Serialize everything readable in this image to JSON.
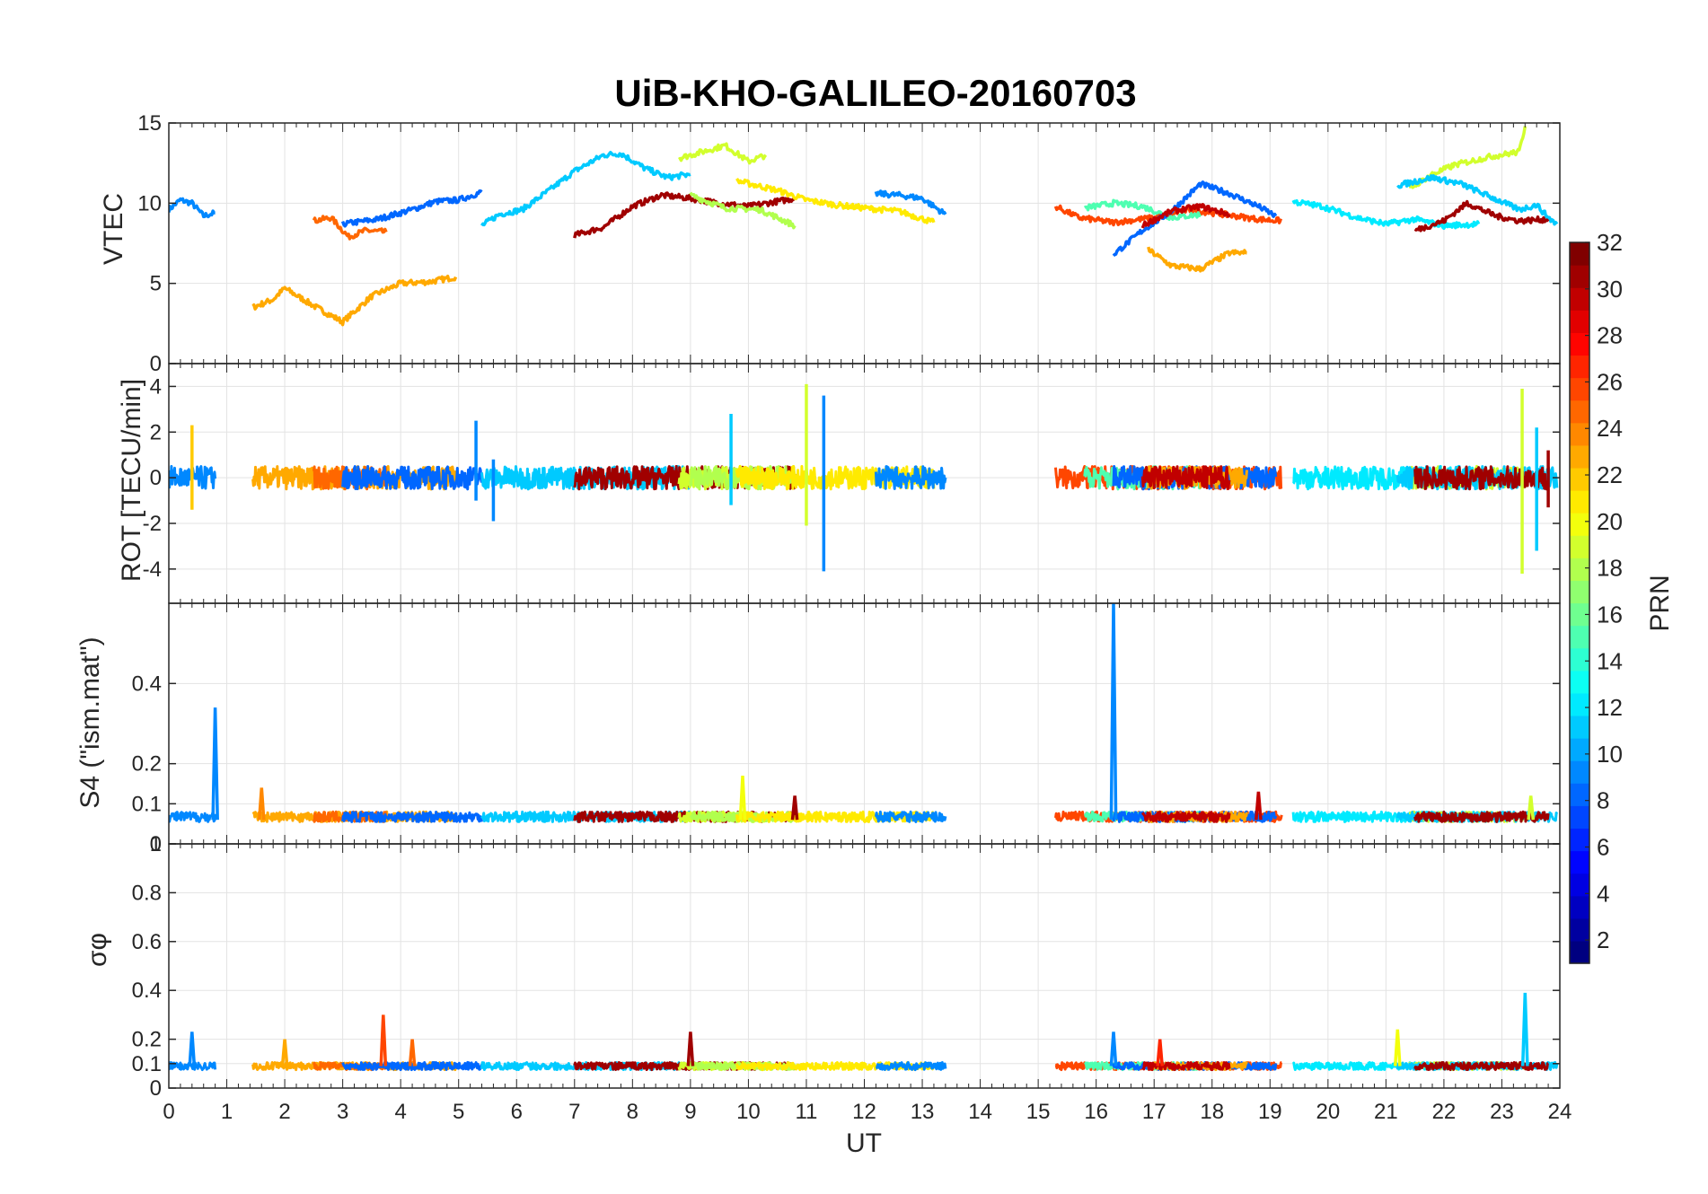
{
  "title": "UiB-KHO-GALILEO-20160703",
  "colors": {
    "grid": "#e3e3e3",
    "axis": "#262626",
    "colormap": "jet"
  },
  "chart_data": [
    {
      "type": "line",
      "panel": "vtec",
      "ylabel": "VTEC",
      "xlim": [
        0,
        24
      ],
      "ylim": [
        0,
        15
      ],
      "yticks": [
        "0",
        "5",
        "10",
        "15"
      ],
      "grid": true,
      "series": [
        {
          "prn": 9,
          "x": [
            0.0,
            0.2,
            0.4,
            0.6,
            0.8
          ],
          "y": [
            9.6,
            10.2,
            10.0,
            9.2,
            9.4
          ]
        },
        {
          "prn": 23,
          "x": [
            1.45,
            1.8,
            2.0,
            2.5,
            3.0,
            3.5,
            4.0,
            4.5,
            4.95
          ],
          "y": [
            3.5,
            4.0,
            4.7,
            3.6,
            2.6,
            4.2,
            5.0,
            5.1,
            5.4
          ]
        },
        {
          "prn": 25,
          "x": [
            2.5,
            2.8,
            3.1,
            3.4,
            3.75
          ],
          "y": [
            8.9,
            9.1,
            7.9,
            8.3,
            8.2
          ]
        },
        {
          "prn": 8,
          "x": [
            3.0,
            3.6,
            4.2,
            4.6,
            5.0,
            5.4
          ],
          "y": [
            8.7,
            9.0,
            9.6,
            10.1,
            10.2,
            10.7
          ]
        },
        {
          "prn": 11,
          "x": [
            5.4,
            5.7,
            6.1,
            6.6,
            7.0,
            7.5,
            7.8,
            8.2,
            8.6,
            9.0
          ],
          "y": [
            8.6,
            9.3,
            9.6,
            10.9,
            12.0,
            13.0,
            13.1,
            12.2,
            11.6,
            11.8
          ]
        },
        {
          "prn": 31,
          "x": [
            7.0,
            7.5,
            8.0,
            8.5,
            9.0,
            9.5,
            10.0,
            10.8
          ],
          "y": [
            8.0,
            8.5,
            9.8,
            10.5,
            10.3,
            10.0,
            9.8,
            10.3
          ]
        },
        {
          "prn": 19,
          "x": [
            8.8,
            9.2,
            9.6,
            10.0,
            10.3
          ],
          "y": [
            12.8,
            13.2,
            13.6,
            12.6,
            13.0
          ]
        },
        {
          "prn": 18,
          "x": [
            9.0,
            9.6,
            10.2,
            10.8
          ],
          "y": [
            10.5,
            9.7,
            9.6,
            8.6
          ]
        },
        {
          "prn": 21,
          "x": [
            9.8,
            10.5,
            11.0,
            11.5,
            12.0,
            12.6,
            13.2
          ],
          "y": [
            11.4,
            10.8,
            10.2,
            9.9,
            9.7,
            9.5,
            8.8
          ]
        },
        {
          "prn": 9,
          "x": [
            12.2,
            12.6,
            13.0,
            13.4
          ],
          "y": [
            10.6,
            10.5,
            10.3,
            9.3
          ]
        },
        {
          "prn": 26,
          "x": [
            15.3,
            15.7,
            16.3,
            17.0,
            17.6,
            18.2,
            18.8,
            19.2
          ],
          "y": [
            9.8,
            9.1,
            8.8,
            9.1,
            9.6,
            9.3,
            9.0,
            8.9
          ]
        },
        {
          "prn": 15,
          "x": [
            15.8,
            16.3,
            16.8,
            17.3,
            17.8
          ],
          "y": [
            9.7,
            10.0,
            9.8,
            9.1,
            9.3
          ]
        },
        {
          "prn": 8,
          "x": [
            16.3,
            16.8,
            17.3,
            17.8,
            18.3,
            18.8,
            19.1
          ],
          "y": [
            6.8,
            8.3,
            9.5,
            11.2,
            10.6,
            9.8,
            9.2
          ]
        },
        {
          "prn": 23,
          "x": [
            16.9,
            17.3,
            17.8,
            18.3,
            18.6
          ],
          "y": [
            7.1,
            6.1,
            5.9,
            6.9,
            6.9
          ]
        },
        {
          "prn": 30,
          "x": [
            16.8,
            17.3,
            17.8,
            18.3
          ],
          "y": [
            8.6,
            9.5,
            9.8,
            9.3
          ]
        },
        {
          "prn": 12,
          "x": [
            19.4,
            19.9,
            20.5,
            21.0,
            21.5,
            22.0,
            22.6
          ],
          "y": [
            10.1,
            9.8,
            9.1,
            8.7,
            9.0,
            8.6,
            8.7
          ]
        },
        {
          "prn": 19,
          "x": [
            21.4,
            21.8,
            22.2,
            22.8,
            23.3,
            23.4
          ],
          "y": [
            10.9,
            11.8,
            12.4,
            12.9,
            13.2,
            14.8
          ]
        },
        {
          "prn": 11,
          "x": [
            21.2,
            21.8,
            22.3,
            22.8,
            23.3,
            23.6,
            23.8,
            23.95
          ],
          "y": [
            11.1,
            11.6,
            11.2,
            10.4,
            9.6,
            9.9,
            9.1,
            8.7
          ]
        },
        {
          "prn": 31,
          "x": [
            21.5,
            22.0,
            22.4,
            22.9,
            23.3,
            23.8
          ],
          "y": [
            8.3,
            8.9,
            10.0,
            9.2,
            8.9,
            9.0
          ]
        }
      ]
    },
    {
      "type": "line",
      "panel": "rot",
      "ylabel": "ROT [TECU/min]",
      "xlim": [
        0,
        24
      ],
      "ylim": [
        -5.5,
        5
      ],
      "yticks": [
        "-4",
        "-2",
        "0",
        "2",
        "4"
      ],
      "grid": true,
      "spikes": [
        {
          "prn": 22,
          "x": 0.4,
          "y": [
            -1.4,
            2.3
          ]
        },
        {
          "prn": 9,
          "x": 5.3,
          "y": [
            -1.0,
            2.5
          ]
        },
        {
          "prn": 9,
          "x": 5.6,
          "y": [
            -1.9,
            0.8
          ]
        },
        {
          "prn": 11,
          "x": 9.7,
          "y": [
            -1.2,
            2.8
          ]
        },
        {
          "prn": 19,
          "x": 11.0,
          "y": [
            -2.1,
            4.1
          ]
        },
        {
          "prn": 9,
          "x": 11.3,
          "y": [
            -4.1,
            3.6
          ]
        },
        {
          "prn": 19,
          "x": 23.35,
          "y": [
            -4.2,
            3.9
          ]
        },
        {
          "prn": 11,
          "x": 23.6,
          "y": [
            -3.2,
            2.2
          ]
        },
        {
          "prn": 31,
          "x": 23.8,
          "y": [
            -1.3,
            1.2
          ]
        }
      ]
    },
    {
      "type": "line",
      "panel": "s4",
      "ylabel": "S4 (\"ism.mat\")",
      "xlim": [
        0,
        24
      ],
      "ylim": [
        0,
        0.6
      ],
      "yticks": [
        "0",
        "0.1",
        "0.2",
        "0.4"
      ],
      "grid": true,
      "peaks": [
        {
          "prn": 9,
          "x": 0.8,
          "y": 0.34
        },
        {
          "prn": 24,
          "x": 1.6,
          "y": 0.14
        },
        {
          "prn": 20,
          "x": 9.9,
          "y": 0.17
        },
        {
          "prn": 31,
          "x": 10.8,
          "y": 0.12
        },
        {
          "prn": 9,
          "x": 16.3,
          "y": 0.6
        },
        {
          "prn": 30,
          "x": 18.8,
          "y": 0.13
        },
        {
          "prn": 19,
          "x": 23.5,
          "y": 0.12
        }
      ]
    },
    {
      "type": "line",
      "panel": "sigma",
      "ylabel": "σφ",
      "xlabel": "UT",
      "xlim": [
        0,
        24
      ],
      "ylim": [
        0,
        1
      ],
      "yticks": [
        "0",
        "0.1",
        "0.2",
        "0.4",
        "0.6",
        "0.8",
        "1"
      ],
      "xticks": [
        "0",
        "1",
        "2",
        "3",
        "4",
        "5",
        "6",
        "7",
        "8",
        "9",
        "10",
        "11",
        "12",
        "13",
        "14",
        "15",
        "16",
        "17",
        "18",
        "19",
        "20",
        "21",
        "22",
        "23",
        "24"
      ],
      "grid": true,
      "peaks": [
        {
          "prn": 9,
          "x": 0.4,
          "y": 0.23
        },
        {
          "prn": 23,
          "x": 2.0,
          "y": 0.2
        },
        {
          "prn": 26,
          "x": 3.7,
          "y": 0.3
        },
        {
          "prn": 25,
          "x": 4.2,
          "y": 0.2
        },
        {
          "prn": 31,
          "x": 9.0,
          "y": 0.23
        },
        {
          "prn": 9,
          "x": 16.3,
          "y": 0.23
        },
        {
          "prn": 27,
          "x": 17.1,
          "y": 0.2
        },
        {
          "prn": 20,
          "x": 21.2,
          "y": 0.24
        },
        {
          "prn": 11,
          "x": 23.4,
          "y": 0.39
        }
      ]
    }
  ],
  "colorbar": {
    "label": "PRN",
    "range": [
      1,
      32
    ],
    "ticks": [
      "2",
      "4",
      "6",
      "8",
      "10",
      "12",
      "14",
      "16",
      "18",
      "20",
      "22",
      "24",
      "26",
      "28",
      "30",
      "32"
    ]
  }
}
